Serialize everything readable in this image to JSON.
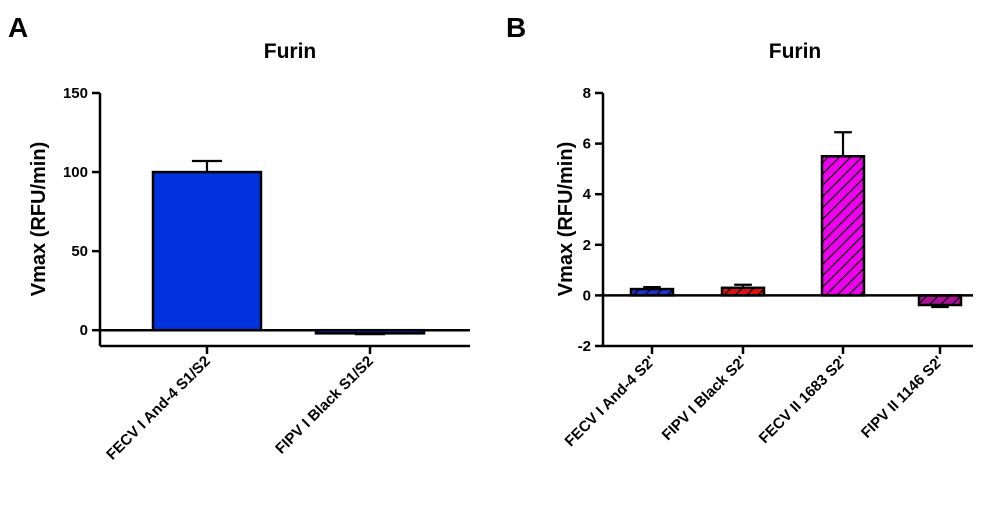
{
  "chart_data": [
    {
      "type": "bar",
      "panel": "A",
      "title": "Furin",
      "ylabel": "Vmax (RFU/min)",
      "xlabel": "",
      "ylim": [
        -10,
        150
      ],
      "yticks": [
        "0",
        "50",
        "100",
        "150"
      ],
      "ytick_values": [
        0,
        50,
        100,
        150
      ],
      "categories": [
        "FECV I And-4 S1/S2",
        "FIPV I Black S1/S2"
      ],
      "values": [
        100,
        -2
      ],
      "errors": [
        7,
        0.5
      ],
      "colors": [
        "#0033dd",
        "#0033dd"
      ],
      "patterns": [
        "solid",
        "solid"
      ]
    },
    {
      "type": "bar",
      "panel": "B",
      "title": "Furin",
      "ylabel": "Vmax (RFU/min)",
      "xlabel": "",
      "ylim": [
        -2,
        8
      ],
      "yticks": [
        "-2",
        "0",
        "2",
        "4",
        "6",
        "8"
      ],
      "ytick_values": [
        -2,
        0,
        2,
        4,
        6,
        8
      ],
      "categories": [
        "FECV I And-4 S2'",
        "FIPV I Black S2'",
        "FECV II 1683 S2'",
        "FIPV II 1146 S2'"
      ],
      "values": [
        0.25,
        0.3,
        5.5,
        -0.38
      ],
      "errors": [
        0.08,
        0.12,
        0.95,
        0.08
      ],
      "colors": [
        "#2233cc",
        "#e01010",
        "#ee00ee",
        "#aa1199"
      ],
      "patterns": [
        "hatch",
        "hatch",
        "hatch",
        "hatch"
      ]
    }
  ]
}
